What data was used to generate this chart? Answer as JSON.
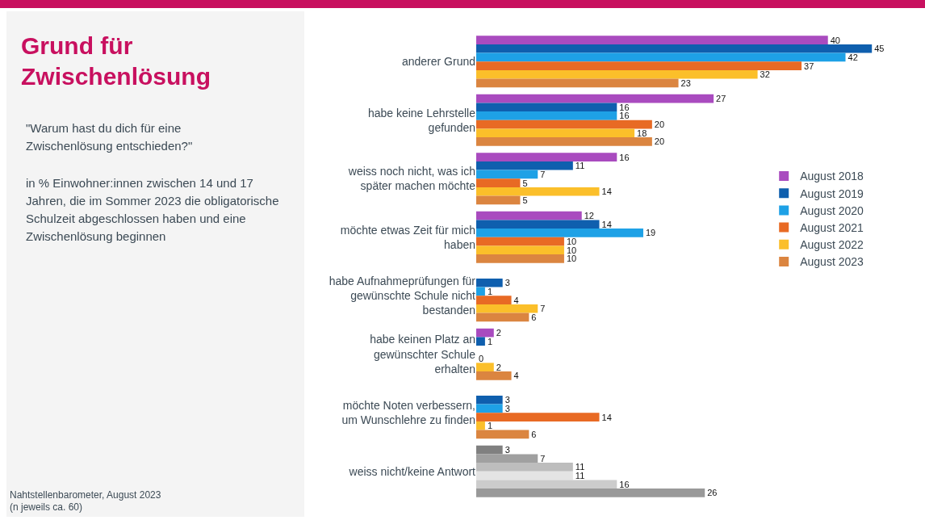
{
  "chart_data": {
    "type": "bar",
    "orientation": "horizontal",
    "title": "Grund für Zwischenlösung",
    "subtitle": "\"Warum hast du dich für eine Zwischenlösung entschieden?\"",
    "annotations": [
      "in % Einwohner:innen zwischen 14 und 17 Jahren, die im Sommer 2023 die obligatorische Schulzeit abgeschlossen haben und eine Zwischenlösung beginnen",
      "Nahtstellenbarometer, August 2023",
      "(n jeweils ca. 60)"
    ],
    "categories": [
      "anderer Grund",
      "habe keine Lehrstelle gefunden",
      "weiss noch nicht, was ich später machen möchte",
      "möchte etwas Zeit für mich haben",
      "habe Aufnahmeprüfungen für gewünschte Schule nicht bestanden",
      "habe keinen Platz an gewünschter Schule erhalten",
      "möchte Noten verbessern, um Wunschlehre zu finden",
      "weiss nicht/keine Antwort"
    ],
    "series": [
      {
        "name": "August 2018",
        "color": "#a94bbf",
        "colors": [
          null,
          null,
          null,
          null,
          null,
          null,
          null,
          "#808080"
        ],
        "values": [
          40,
          27,
          16,
          12,
          null,
          2,
          null,
          3
        ]
      },
      {
        "name": "August 2019",
        "color": "#0f5fae",
        "colors": [
          null,
          null,
          null,
          null,
          null,
          null,
          null,
          "#a0a0a0"
        ],
        "values": [
          45,
          16,
          11,
          14,
          3,
          1,
          3,
          7
        ]
      },
      {
        "name": "August 2020",
        "color": "#1ea1e6",
        "colors": [
          null,
          null,
          null,
          null,
          null,
          null,
          null,
          "#bdbdbd"
        ],
        "values": [
          42,
          16,
          7,
          19,
          1,
          null,
          3,
          11
        ]
      },
      {
        "name": "August 2021",
        "color": "#e86a24",
        "colors": [
          null,
          null,
          null,
          null,
          null,
          null,
          null,
          "#e4e4e4"
        ],
        "values": [
          37,
          20,
          5,
          10,
          4,
          0,
          14,
          11
        ]
      },
      {
        "name": "August 2022",
        "color": "#fbbf2a",
        "colors": [
          null,
          null,
          null,
          null,
          null,
          null,
          null,
          "#cccccc"
        ],
        "values": [
          32,
          18,
          14,
          10,
          7,
          2,
          1,
          16
        ]
      },
      {
        "name": "August 2023",
        "color": "#db8540",
        "colors": [
          null,
          null,
          null,
          null,
          null,
          null,
          null,
          "#999999"
        ],
        "values": [
          23,
          20,
          5,
          10,
          6,
          4,
          6,
          26
        ]
      }
    ],
    "data_labels": true,
    "legend": "right",
    "tick_labels": "y"
  }
}
